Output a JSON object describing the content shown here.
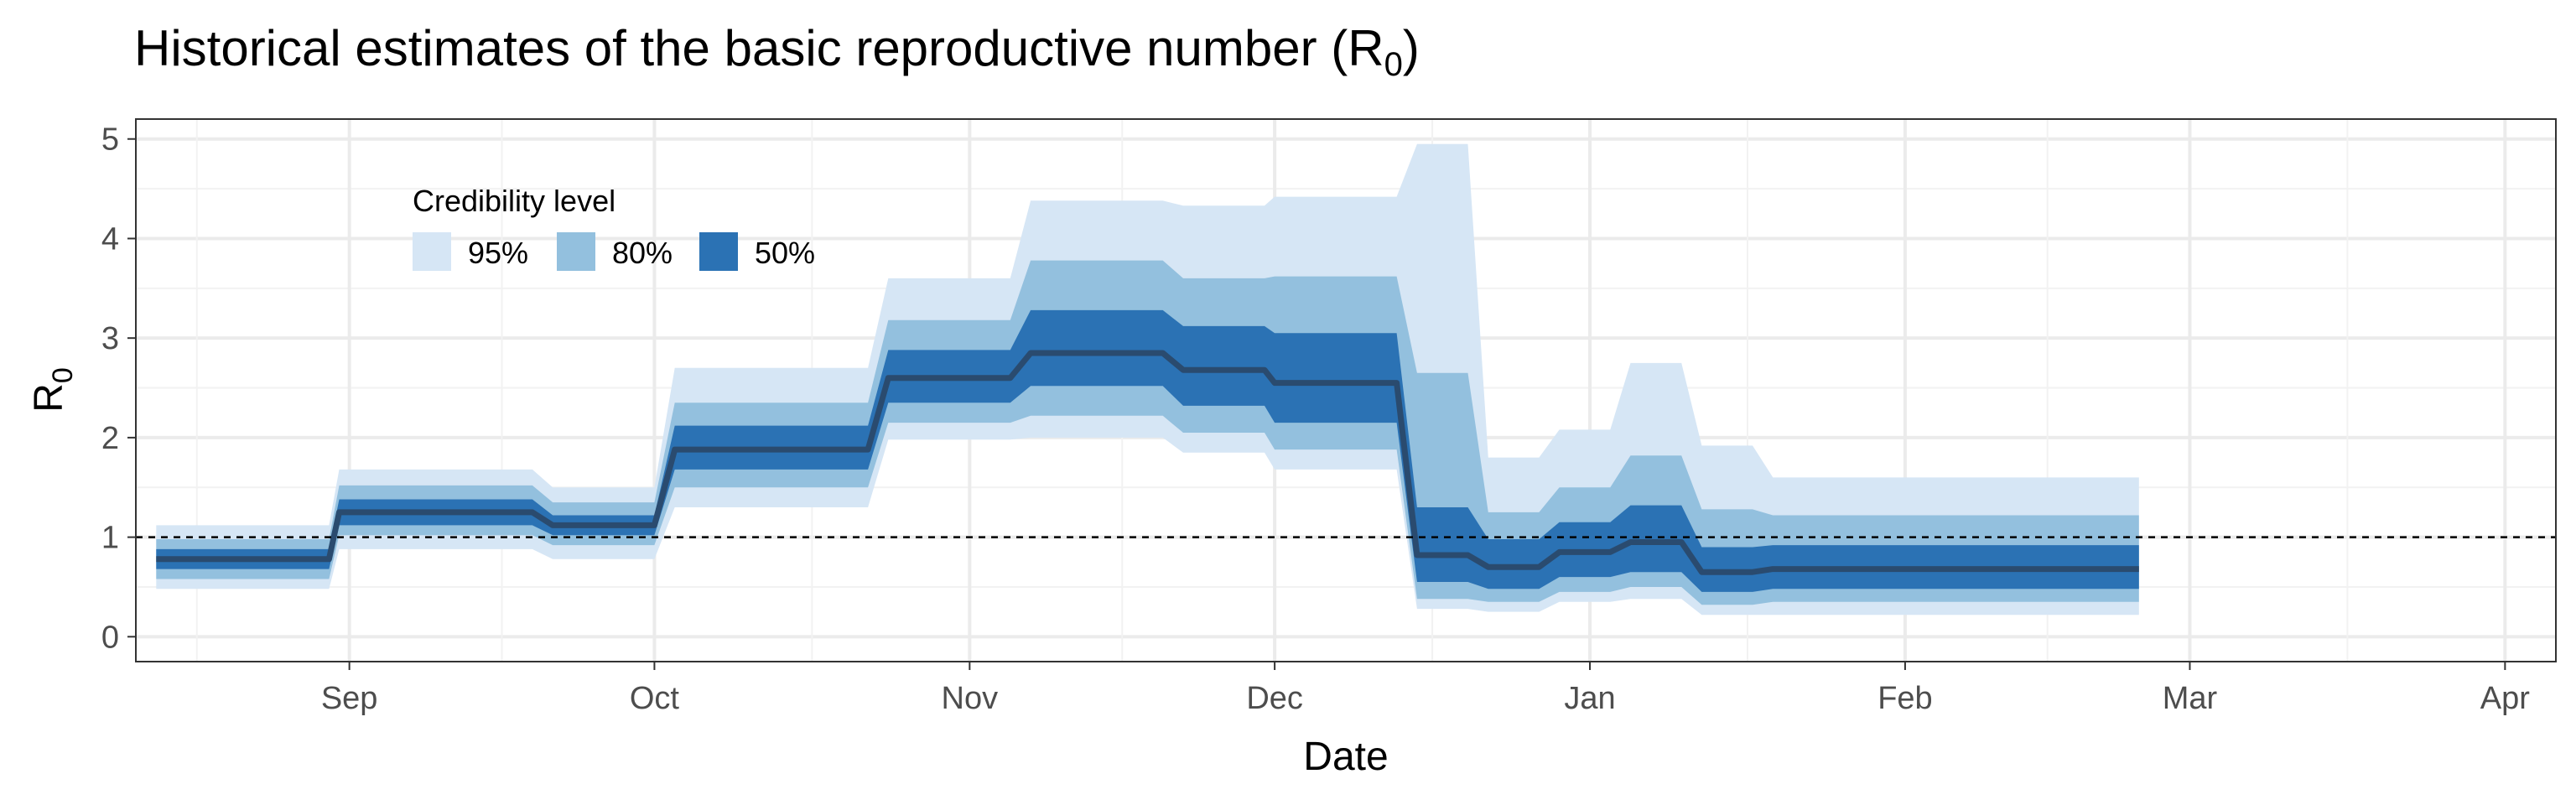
{
  "chart_data": {
    "type": "area",
    "title": "Historical estimates of the basic reproductive number (R",
    "title_subscript": "0",
    "title_suffix": ")",
    "xlabel": "Date",
    "ylabel": "R",
    "ylabel_subscript": "0",
    "xlim": [
      "2020-08-11",
      "2021-04-06"
    ],
    "ylim": [
      -0.25,
      5.2
    ],
    "x_ticks": [
      {
        "date": "2020-09-01",
        "label": "Sep"
      },
      {
        "date": "2020-10-01",
        "label": "Oct"
      },
      {
        "date": "2020-11-01",
        "label": "Nov"
      },
      {
        "date": "2020-12-01",
        "label": "Dec"
      },
      {
        "date": "2021-01-01",
        "label": "Jan"
      },
      {
        "date": "2021-02-01",
        "label": "Feb"
      },
      {
        "date": "2021-03-01",
        "label": "Mar"
      },
      {
        "date": "2021-04-01",
        "label": "Apr"
      }
    ],
    "y_ticks": [
      0,
      1,
      2,
      3,
      4,
      5
    ],
    "reference_line": {
      "y": 1,
      "style": "dashed"
    },
    "grid": true,
    "legend": {
      "title": "Credibility level",
      "placement": "top-left",
      "entries": [
        {
          "label": "95%",
          "color": "#d6e6f5"
        },
        {
          "label": "80%",
          "color": "#93c0de"
        },
        {
          "label": "50%",
          "color": "#2b72b4"
        }
      ]
    },
    "median_color": "#2a4b6f",
    "series": [
      {
        "start": "2020-08-13",
        "end": "2020-08-30",
        "median": 0.78,
        "q50": [
          0.68,
          0.88
        ],
        "q80": [
          0.58,
          0.98
        ],
        "q95": [
          0.48,
          1.12
        ]
      },
      {
        "start": "2020-08-31",
        "end": "2020-09-19",
        "median": 1.25,
        "q50": [
          1.12,
          1.38
        ],
        "q80": [
          1.02,
          1.52
        ],
        "q95": [
          0.88,
          1.68
        ]
      },
      {
        "start": "2020-09-21",
        "end": "2020-10-01",
        "median": 1.12,
        "q50": [
          1.02,
          1.22
        ],
        "q80": [
          0.92,
          1.35
        ],
        "q95": [
          0.78,
          1.5
        ]
      },
      {
        "start": "2020-10-03",
        "end": "2020-10-22",
        "median": 1.88,
        "q50": [
          1.68,
          2.12
        ],
        "q80": [
          1.5,
          2.35
        ],
        "q95": [
          1.3,
          2.7
        ]
      },
      {
        "start": "2020-10-24",
        "end": "2020-11-05",
        "median": 2.6,
        "q50": [
          2.35,
          2.88
        ],
        "q80": [
          2.15,
          3.18
        ],
        "q95": [
          1.98,
          3.6
        ]
      },
      {
        "start": "2020-11-07",
        "end": "2020-11-20",
        "median": 2.85,
        "q50": [
          2.52,
          3.28
        ],
        "q80": [
          2.22,
          3.78
        ],
        "q95": [
          2.0,
          4.38
        ]
      },
      {
        "start": "2020-11-22",
        "end": "2020-11-30",
        "median": 2.68,
        "q50": [
          2.32,
          3.12
        ],
        "q80": [
          2.05,
          3.6
        ],
        "q95": [
          1.85,
          4.33
        ]
      },
      {
        "start": "2020-12-01",
        "end": "2020-12-13",
        "median": 2.55,
        "q50": [
          2.15,
          3.05
        ],
        "q80": [
          1.88,
          3.62
        ],
        "q95": [
          1.68,
          4.42
        ]
      },
      {
        "start": "2020-12-15",
        "end": "2020-12-20",
        "median": 0.82,
        "q50": [
          0.55,
          1.3
        ],
        "q80": [
          0.38,
          2.65
        ],
        "q95": [
          0.28,
          4.95
        ]
      },
      {
        "start": "2020-12-22",
        "end": "2020-12-27",
        "median": 0.7,
        "q50": [
          0.48,
          0.98
        ],
        "q80": [
          0.35,
          1.25
        ],
        "q95": [
          0.25,
          1.8
        ]
      },
      {
        "start": "2020-12-29",
        "end": "2021-01-03",
        "median": 0.85,
        "q50": [
          0.6,
          1.15
        ],
        "q80": [
          0.45,
          1.5
        ],
        "q95": [
          0.35,
          2.08
        ]
      },
      {
        "start": "2021-01-05",
        "end": "2021-01-10",
        "median": 0.95,
        "q50": [
          0.65,
          1.32
        ],
        "q80": [
          0.5,
          1.82
        ],
        "q95": [
          0.38,
          2.75
        ]
      },
      {
        "start": "2021-01-12",
        "end": "2021-01-17",
        "median": 0.65,
        "q50": [
          0.45,
          0.9
        ],
        "q80": [
          0.32,
          1.28
        ],
        "q95": [
          0.22,
          1.92
        ]
      },
      {
        "start": "2021-01-19",
        "end": "2021-02-24",
        "median": 0.68,
        "q50": [
          0.48,
          0.92
        ],
        "q80": [
          0.35,
          1.22
        ],
        "q95": [
          0.22,
          1.6
        ]
      }
    ]
  }
}
